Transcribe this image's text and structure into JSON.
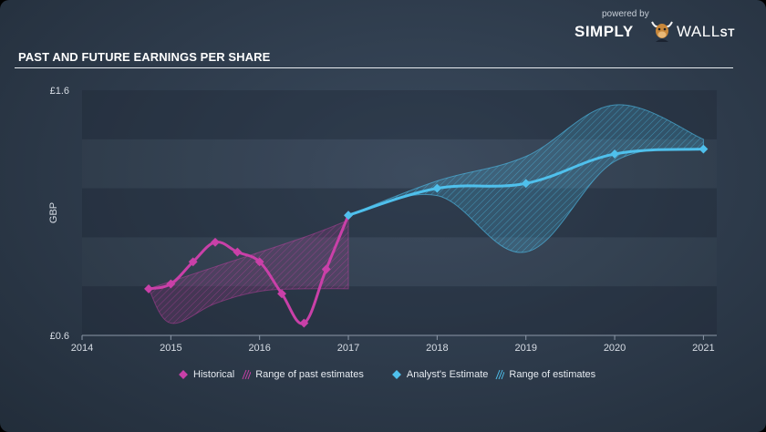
{
  "brand": {
    "powered": "powered by",
    "simply": "SIMPLY",
    "wall": "WALL",
    "st": "ST"
  },
  "title": "PAST AND FUTURE EARNINGS PER SHARE",
  "colors": {
    "historical": "#c940a8",
    "estimate": "#4fc0ec",
    "hist_range_fill": "rgba(201,64,168,0.18)",
    "est_range_fill": "rgba(79,192,236,0.22)"
  },
  "chart_data": {
    "type": "line",
    "ylabel": "GBP",
    "xlim": [
      2014,
      2021.15
    ],
    "ylim": [
      0.6,
      1.6
    ],
    "y_ticks": [
      {
        "v": 1.6,
        "label": "£1.6"
      },
      {
        "v": 0.6,
        "label": "£0.6"
      }
    ],
    "x_ticks": [
      {
        "v": 2014,
        "label": "2014"
      },
      {
        "v": 2015,
        "label": "2015"
      },
      {
        "v": 2016,
        "label": "2016"
      },
      {
        "v": 2017,
        "label": "2017"
      },
      {
        "v": 2018,
        "label": "2018"
      },
      {
        "v": 2019,
        "label": "2019"
      },
      {
        "v": 2020,
        "label": "2020"
      },
      {
        "v": 2021,
        "label": "2021"
      }
    ],
    "series": [
      {
        "name": "Historical",
        "points": [
          [
            2014.75,
            0.79
          ],
          [
            2015.0,
            0.81
          ],
          [
            2015.25,
            0.9
          ],
          [
            2015.5,
            0.98
          ],
          [
            2015.75,
            0.94
          ],
          [
            2016.0,
            0.9
          ],
          [
            2016.25,
            0.77
          ],
          [
            2016.5,
            0.65
          ],
          [
            2016.75,
            0.87
          ],
          [
            2017.0,
            1.09
          ]
        ]
      },
      {
        "name": "Analyst's Estimate",
        "points": [
          [
            2017.0,
            1.09
          ],
          [
            2018.0,
            1.2
          ],
          [
            2019.0,
            1.22
          ],
          [
            2020.0,
            1.34
          ],
          [
            2021.0,
            1.36
          ]
        ]
      }
    ],
    "ranges": [
      {
        "name": "Range of past estimates",
        "upper": [
          [
            2014.75,
            0.79
          ],
          [
            2015.5,
            0.88
          ],
          [
            2016.5,
            1.0
          ],
          [
            2017.0,
            1.07
          ]
        ],
        "lower": [
          [
            2014.75,
            0.79
          ],
          [
            2015.0,
            0.65
          ],
          [
            2015.5,
            0.73
          ],
          [
            2016.0,
            0.78
          ],
          [
            2016.5,
            0.79
          ],
          [
            2017.0,
            0.79
          ]
        ]
      },
      {
        "name": "Range of estimates",
        "upper": [
          [
            2017.0,
            1.09
          ],
          [
            2018.0,
            1.23
          ],
          [
            2019.0,
            1.33
          ],
          [
            2020.0,
            1.54
          ],
          [
            2021.0,
            1.4
          ]
        ],
        "lower": [
          [
            2017.0,
            1.09
          ],
          [
            2018.0,
            1.17
          ],
          [
            2019.0,
            0.94
          ],
          [
            2020.0,
            1.31
          ],
          [
            2021.0,
            1.36
          ]
        ]
      }
    ],
    "legend": [
      {
        "label": "Historical",
        "kind": "line",
        "color": "#c940a8"
      },
      {
        "label": "Range of past estimates",
        "kind": "hatch",
        "color": "#c940a8"
      },
      {
        "label": "Analyst's Estimate",
        "kind": "line",
        "color": "#4fc0ec"
      },
      {
        "label": "Range of estimates",
        "kind": "hatch",
        "color": "#4fc0ec"
      }
    ]
  }
}
